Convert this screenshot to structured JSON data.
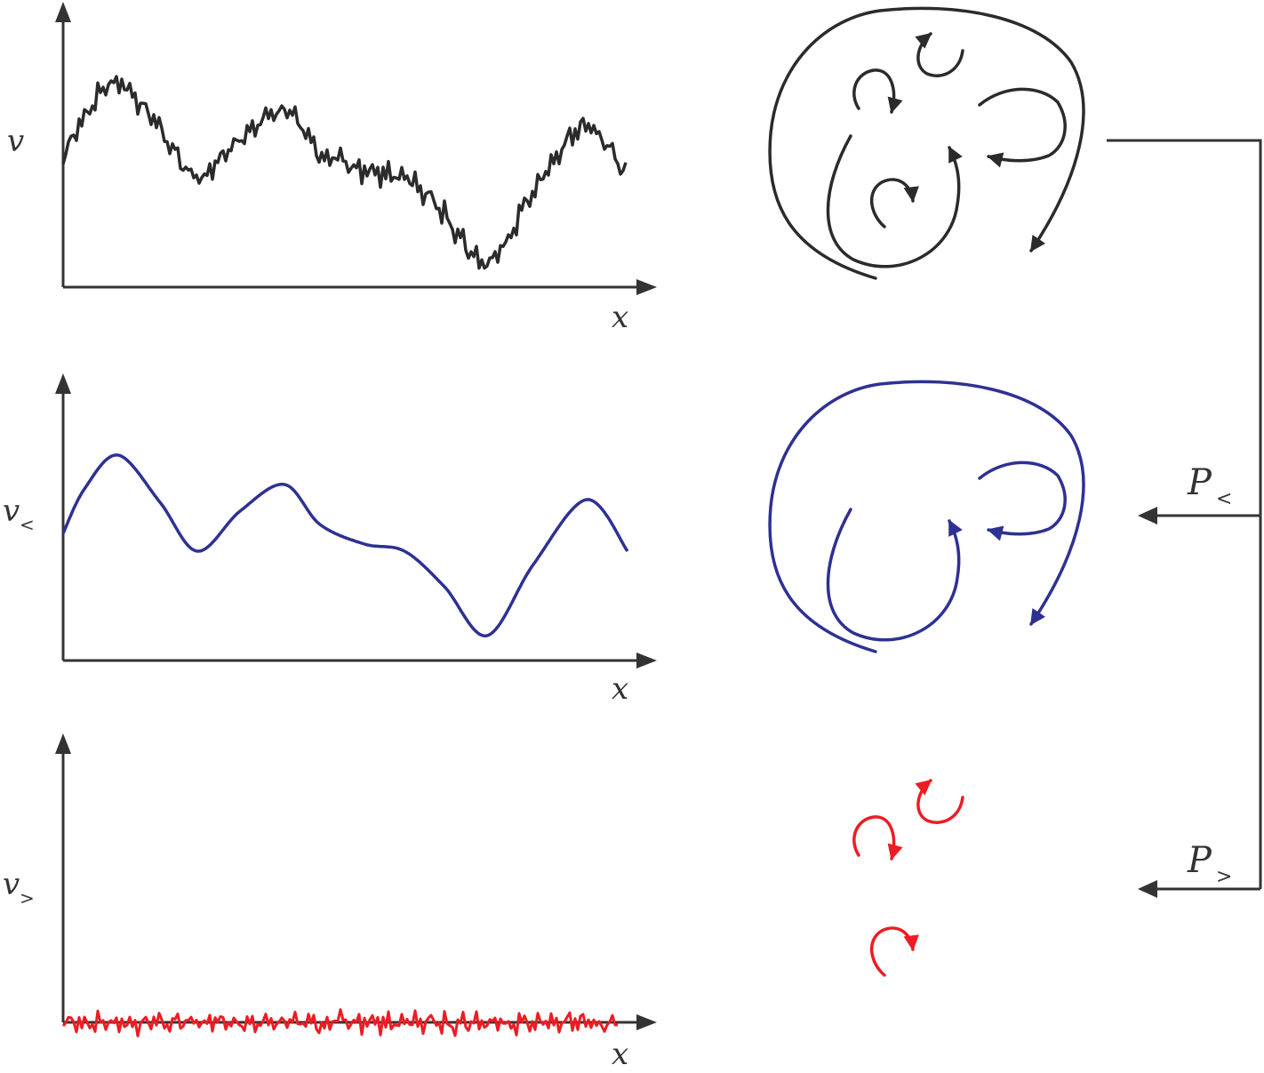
{
  "colors": {
    "total": "#2b2b2b",
    "large_scale": "#2e3192",
    "small_scale": "#ed1c24",
    "axis": "#333333"
  },
  "panels": [
    {
      "id": "total",
      "ylabel_main": "v",
      "ylabel_sub": "",
      "xlabel": "x"
    },
    {
      "id": "large",
      "ylabel_main": "v",
      "ylabel_sub": "<",
      "xlabel": "x"
    },
    {
      "id": "small",
      "ylabel_main": "v",
      "ylabel_sub": ">",
      "xlabel": "x"
    }
  ],
  "projectors": [
    {
      "id": "low",
      "main": "P",
      "sub": "<"
    },
    {
      "id": "high",
      "main": "P",
      "sub": ">"
    }
  ]
}
